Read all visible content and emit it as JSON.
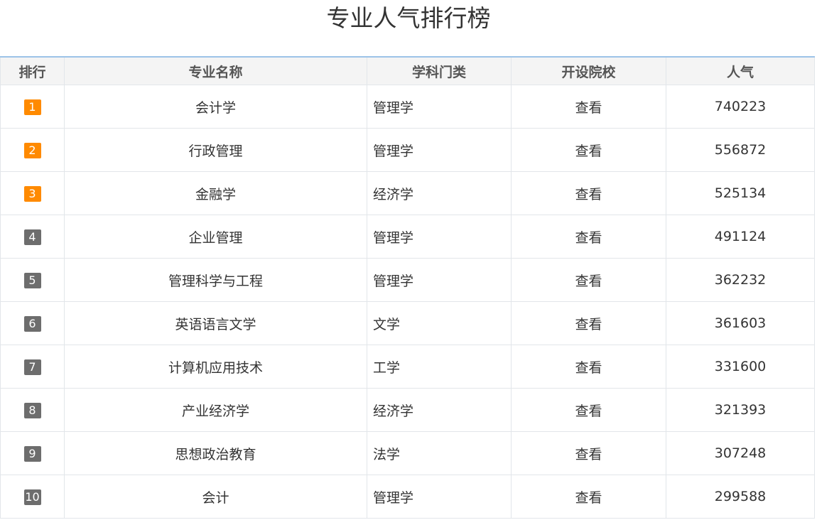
{
  "title": "专业人气排行榜",
  "headers": [
    "排行",
    "专业名称",
    "学科门类",
    "开设院校",
    "人气"
  ],
  "colors": {
    "top3_badge": "#ff8a00",
    "badge": "#6d6d6d",
    "header_border": "#9cc3e8"
  },
  "rows": [
    {
      "rank": "1",
      "name": "会计学",
      "category": "管理学",
      "schools": "查看",
      "popularity": "740223"
    },
    {
      "rank": "2",
      "name": "行政管理",
      "category": "管理学",
      "schools": "查看",
      "popularity": "556872"
    },
    {
      "rank": "3",
      "name": "金融学",
      "category": "经济学",
      "schools": "查看",
      "popularity": "525134"
    },
    {
      "rank": "4",
      "name": "企业管理",
      "category": "管理学",
      "schools": "查看",
      "popularity": "491124"
    },
    {
      "rank": "5",
      "name": "管理科学与工程",
      "category": "管理学",
      "schools": "查看",
      "popularity": "362232"
    },
    {
      "rank": "6",
      "name": "英语语言文学",
      "category": "文学",
      "schools": "查看",
      "popularity": "361603"
    },
    {
      "rank": "7",
      "name": "计算机应用技术",
      "category": "工学",
      "schools": "查看",
      "popularity": "331600"
    },
    {
      "rank": "8",
      "name": "产业经济学",
      "category": "经济学",
      "schools": "查看",
      "popularity": "321393"
    },
    {
      "rank": "9",
      "name": "思想政治教育",
      "category": "法学",
      "schools": "查看",
      "popularity": "307248"
    },
    {
      "rank": "10",
      "name": "会计",
      "category": "管理学",
      "schools": "查看",
      "popularity": "299588"
    }
  ]
}
